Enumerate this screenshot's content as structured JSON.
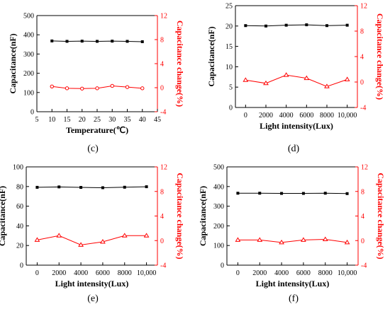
{
  "figure": {
    "panel_labels": [
      "(c)",
      "(d)",
      "(e)",
      "(f)"
    ]
  },
  "colors": {
    "left_axis": "#000000",
    "right_axis": "#ff0000",
    "capacitance_series": "#000000",
    "change_series": "#ff0000"
  },
  "chart_data": [
    {
      "type": "line",
      "panel": "(c)",
      "xlabel": "Temperature(℃)",
      "ylabel_left": "Capacitance(nF)",
      "ylabel_right": "Capacitance change(%)",
      "xlim": [
        5,
        45
      ],
      "xticks": [
        5,
        10,
        15,
        20,
        25,
        30,
        35,
        40,
        45
      ],
      "xtick_labels": [
        "5",
        "10",
        "15",
        "20",
        "25",
        "30",
        "35",
        "40",
        "45"
      ],
      "ylim_left": [
        0,
        500
      ],
      "yticks_left": [
        0,
        100,
        200,
        300,
        400,
        500
      ],
      "ylim_right": [
        -4,
        12
      ],
      "yticks_right": [
        -4,
        0,
        4,
        8,
        12
      ],
      "x": [
        10,
        15,
        20,
        25,
        30,
        35,
        40
      ],
      "series": [
        {
          "axis": "left",
          "marker": "square",
          "values": [
            368,
            366,
            367,
            366,
            367,
            366,
            364
          ]
        },
        {
          "axis": "right",
          "marker": "circle",
          "values": [
            0.2,
            -0.1,
            -0.15,
            -0.1,
            0.3,
            0.1,
            -0.1
          ]
        }
      ]
    },
    {
      "type": "line",
      "panel": "(d)",
      "xlabel": "Light intensity(Lux)",
      "ylabel_left": "Capacitance(nF)",
      "ylabel_right": "Capacitance change(%)",
      "xlim": [
        -1000,
        11000
      ],
      "xticks": [
        0,
        2000,
        4000,
        6000,
        8000,
        10000
      ],
      "xtick_labels": [
        "0",
        "2000",
        "4000",
        "6000",
        "8000",
        "10,000"
      ],
      "ylim_left": [
        0,
        25
      ],
      "yticks_left": [
        0,
        5,
        10,
        15,
        20,
        25
      ],
      "ylim_right": [
        -4,
        12
      ],
      "yticks_right": [
        -4,
        0,
        4,
        8,
        12
      ],
      "x": [
        0,
        2000,
        4000,
        6000,
        8000,
        10000
      ],
      "series": [
        {
          "axis": "left",
          "marker": "square",
          "values": [
            20.1,
            20.0,
            20.2,
            20.3,
            20.1,
            20.2
          ]
        },
        {
          "axis": "right",
          "marker": "triangle",
          "values": [
            0.3,
            -0.2,
            1.1,
            0.6,
            -0.7,
            0.4
          ]
        }
      ]
    },
    {
      "type": "line",
      "panel": "(e)",
      "xlabel": "Light intensity(Lux)",
      "ylabel_left": "Capacitance(nF)",
      "ylabel_right": "Capacitance change(%)",
      "xlim": [
        -1000,
        11000
      ],
      "xticks": [
        0,
        2000,
        4000,
        6000,
        8000,
        10000
      ],
      "xtick_labels": [
        "0",
        "2000",
        "4000",
        "6000",
        "8000",
        "10,000"
      ],
      "ylim_left": [
        0,
        100
      ],
      "yticks_left": [
        0,
        20,
        40,
        60,
        80,
        100
      ],
      "ylim_right": [
        -4,
        12
      ],
      "yticks_right": [
        -4,
        0,
        4,
        8,
        12
      ],
      "x": [
        0,
        2000,
        4000,
        6000,
        8000,
        10000
      ],
      "series": [
        {
          "axis": "left",
          "marker": "square",
          "values": [
            79.2,
            79.6,
            79.1,
            78.8,
            79.3,
            79.8
          ]
        },
        {
          "axis": "right",
          "marker": "triangle",
          "values": [
            0.1,
            0.8,
            -0.7,
            -0.2,
            0.8,
            0.8
          ]
        }
      ]
    },
    {
      "type": "line",
      "panel": "(f)",
      "xlabel": "Light intensity(Lux)",
      "ylabel_left": "Capacitance(nF)",
      "ylabel_right": "Capacitance change(%)",
      "xlim": [
        -1000,
        11000
      ],
      "xticks": [
        0,
        2000,
        4000,
        6000,
        8000,
        10000
      ],
      "xtick_labels": [
        "0",
        "2000",
        "4000",
        "6000",
        "8000",
        "10,000"
      ],
      "ylim_left": [
        0,
        500
      ],
      "yticks_left": [
        0,
        100,
        200,
        300,
        400,
        500
      ],
      "ylim_right": [
        -4,
        12
      ],
      "yticks_right": [
        -4,
        0,
        4,
        8,
        12
      ],
      "x": [
        0,
        2000,
        4000,
        6000,
        8000,
        10000
      ],
      "series": [
        {
          "axis": "left",
          "marker": "square",
          "values": [
            366,
            366,
            365,
            365,
            366,
            364
          ]
        },
        {
          "axis": "right",
          "marker": "triangle",
          "values": [
            0.1,
            0.1,
            -0.3,
            0.1,
            0.2,
            -0.3
          ]
        }
      ]
    }
  ]
}
